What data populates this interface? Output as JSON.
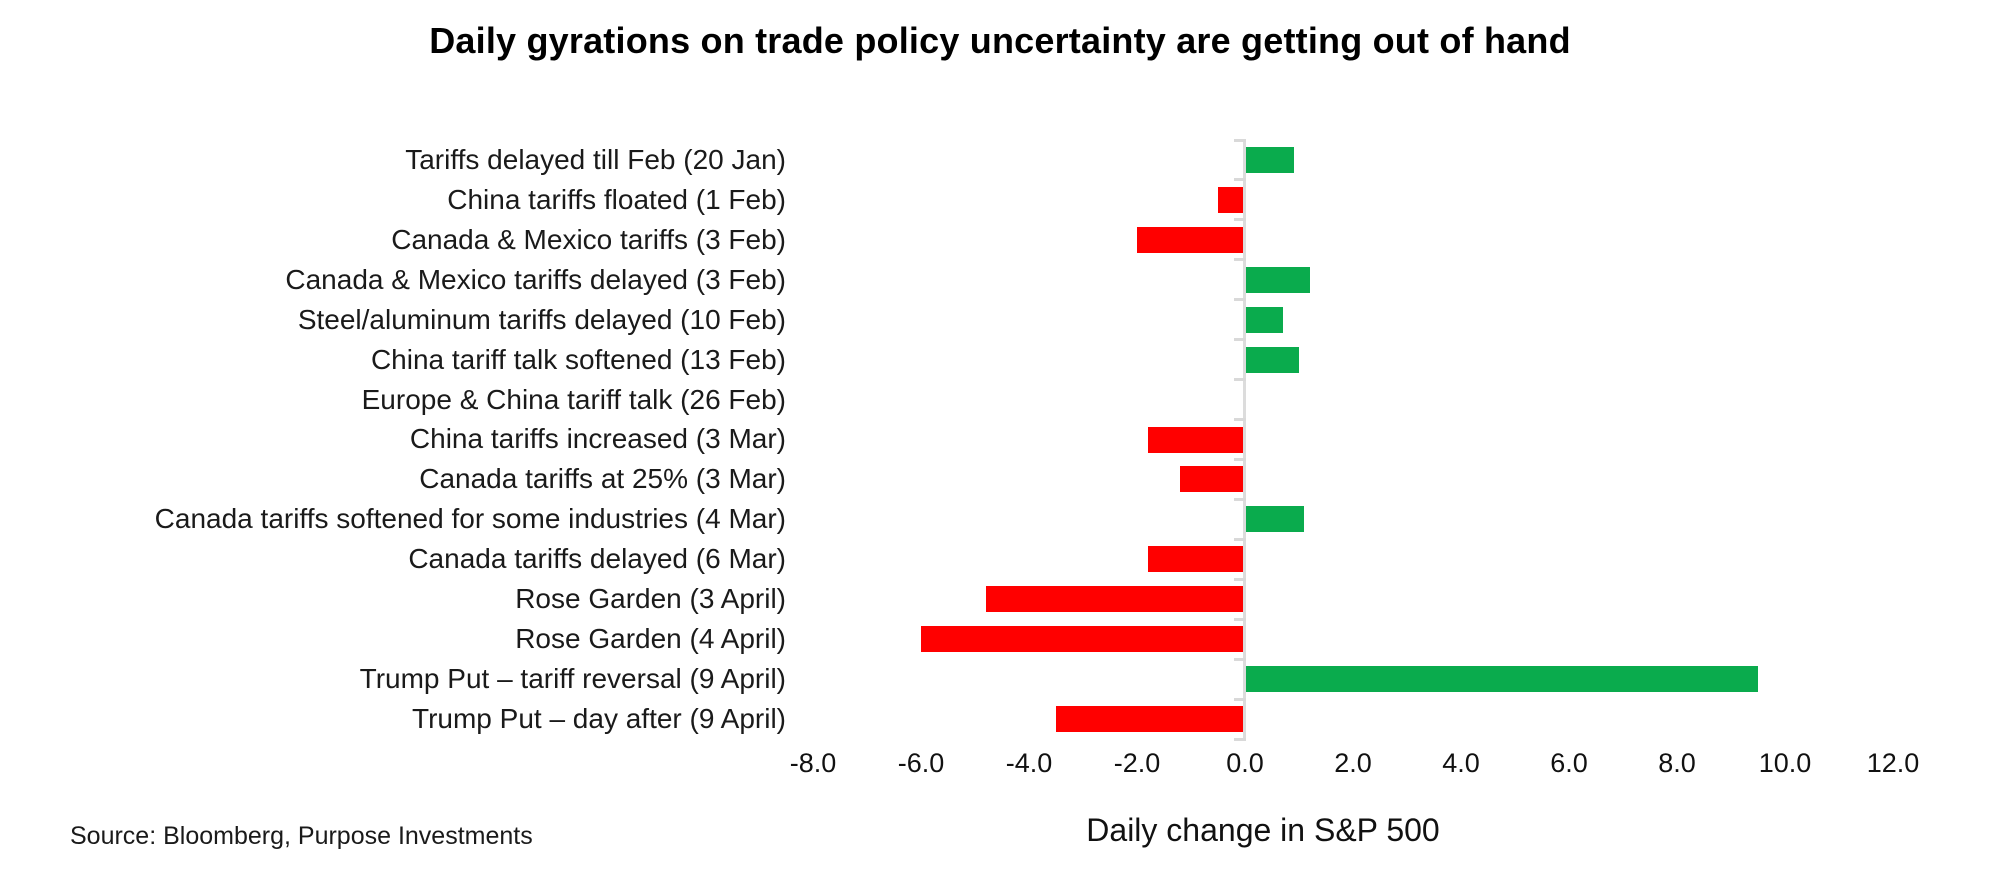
{
  "chart_data": {
    "type": "bar",
    "orientation": "horizontal",
    "title": "Daily gyrations on trade policy uncertainty are getting out of hand",
    "xlabel": "Daily change in S&P 500",
    "source": "Source: Bloomberg, Purpose Investments",
    "categories": [
      "Tariffs delayed till Feb (20 Jan)",
      "China tariffs floated (1 Feb)",
      "Canada & Mexico tariffs (3 Feb)",
      "Canada & Mexico tariffs delayed (3 Feb)",
      "Steel/aluminum tariffs delayed (10 Feb)",
      "China tariff talk softened (13 Feb)",
      "Europe & China tariff talk (26 Feb)",
      "China tariffs increased (3 Mar)",
      "Canada tariffs at 25% (3 Mar)",
      "Canada tariffs softened for some industries (4 Mar)",
      "Canada tariffs delayed (6 Mar)",
      "Rose Garden (3 April)",
      "Rose Garden (4 April)",
      "Trump Put – tariff reversal (9 April)",
      "Trump Put – day after (9 April)"
    ],
    "values": [
      0.9,
      -0.5,
      -2.0,
      1.2,
      0.7,
      1.0,
      0.0,
      -1.8,
      -1.2,
      1.1,
      -1.8,
      -4.8,
      -6.0,
      9.5,
      -3.5
    ],
    "x_ticks": [
      -8,
      -6,
      -4,
      -2,
      0,
      2,
      4,
      6,
      8,
      10,
      12
    ],
    "x_tick_labels": [
      "-8.0",
      "-6.0",
      "-4.0",
      "-2.0",
      "0.0",
      "2.0",
      "4.0",
      "6.0",
      "8.0",
      "10.0",
      "12.0"
    ],
    "xlim": [
      -8.5,
      13.2
    ],
    "grid": false,
    "legend": null,
    "colors": {
      "positive": "#0aab4d",
      "negative": "#ff0000",
      "axis": "#dcdcdc",
      "tick_dash": "#d9d9d9"
    }
  }
}
